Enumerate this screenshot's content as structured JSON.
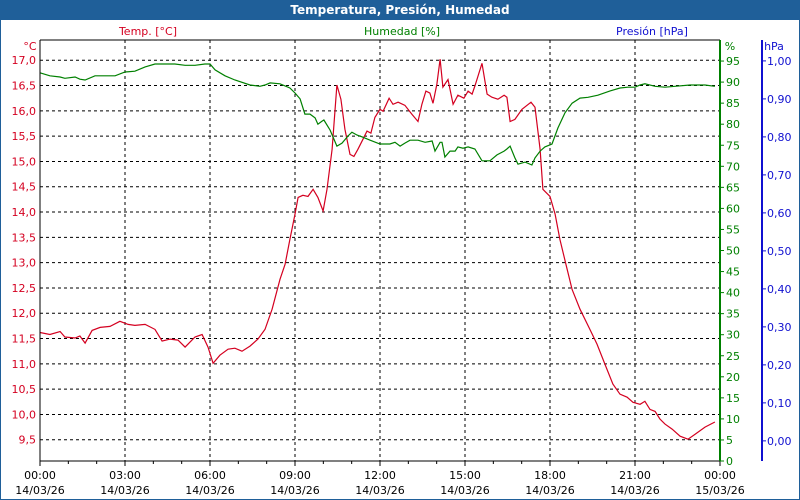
{
  "window_title": "Temperatura, Presión, Humedad",
  "colors": {
    "temp": "#d40020",
    "hum": "#008000",
    "pres": "#1010d0",
    "titlebar": "#1f5f99"
  },
  "chart_data": {
    "type": "line",
    "title": "Temperatura, Presión, Humedad",
    "legend": {
      "temp": "Temp. [°C]",
      "hum": "Humedad [%]",
      "pres": "Presión [hPa]"
    },
    "axes": {
      "temp": {
        "unit": "°C",
        "range": [
          9.08,
          17.4
        ],
        "ticks": [
          "9,5",
          "10,0",
          "10,5",
          "11,0",
          "11,5",
          "12,0",
          "12,5",
          "13,0",
          "13,5",
          "14,0",
          "14,5",
          "15,0",
          "15,5",
          "16,0",
          "16,5",
          "17,0"
        ],
        "tick_values": [
          9.5,
          10,
          10.5,
          11,
          11.5,
          12,
          12.5,
          13,
          13.5,
          14,
          14.5,
          15,
          15.5,
          16,
          16.5,
          17
        ]
      },
      "hum": {
        "unit": "%",
        "range": [
          0,
          100
        ],
        "ticks": [
          "0",
          "5",
          "10",
          "15",
          "20",
          "25",
          "30",
          "35",
          "40",
          "45",
          "50",
          "55",
          "60",
          "65",
          "70",
          "75",
          "80",
          "85",
          "90",
          "95"
        ],
        "tick_values": [
          0,
          5,
          10,
          15,
          20,
          25,
          30,
          35,
          40,
          45,
          50,
          55,
          60,
          65,
          70,
          75,
          80,
          85,
          90,
          95
        ]
      },
      "pres": {
        "unit": "hPa",
        "range": [
          -0.053,
          1.055
        ],
        "ticks": [
          "0,00",
          "0,10",
          "0,20",
          "0,30",
          "0,40",
          "0,50",
          "0,60",
          "0,70",
          "0,80",
          "0,90",
          "1,00"
        ],
        "tick_values": [
          0,
          0.1,
          0.2,
          0.3,
          0.4,
          0.5,
          0.6,
          0.7,
          0.8,
          0.9,
          1.0
        ]
      },
      "x": {
        "range_hours": [
          0,
          24
        ],
        "ticks": [
          {
            "time": "00:00",
            "date": "14/03/26"
          },
          {
            "time": "03:00",
            "date": "14/03/26"
          },
          {
            "time": "06:00",
            "date": "14/03/26"
          },
          {
            "time": "09:00",
            "date": "14/03/26"
          },
          {
            "time": "12:00",
            "date": "14/03/26"
          },
          {
            "time": "15:00",
            "date": "14/03/26"
          },
          {
            "time": "18:00",
            "date": "14/03/26"
          },
          {
            "time": "21:00",
            "date": "14/03/26"
          },
          {
            "time": "00:00",
            "date": "15/03/26"
          }
        ]
      }
    },
    "grid": true,
    "series": [
      {
        "name": "Temp. [°C]",
        "axis": "temp",
        "points": [
          [
            0,
            11.62
          ],
          [
            0.35,
            11.58
          ],
          [
            0.71,
            11.64
          ],
          [
            0.88,
            11.53
          ],
          [
            1.24,
            11.51
          ],
          [
            1.41,
            11.55
          ],
          [
            1.59,
            11.41
          ],
          [
            1.84,
            11.66
          ],
          [
            2.12,
            11.72
          ],
          [
            2.47,
            11.74
          ],
          [
            2.82,
            11.84
          ],
          [
            3.11,
            11.78
          ],
          [
            3.35,
            11.76
          ],
          [
            3.71,
            11.78
          ],
          [
            4.06,
            11.68
          ],
          [
            4.31,
            11.45
          ],
          [
            4.59,
            11.49
          ],
          [
            4.87,
            11.47
          ],
          [
            5.12,
            11.33
          ],
          [
            5.47,
            11.53
          ],
          [
            5.72,
            11.58
          ],
          [
            5.93,
            11.33
          ],
          [
            6.11,
            11.01
          ],
          [
            6.35,
            11.17
          ],
          [
            6.64,
            11.29
          ],
          [
            6.88,
            11.31
          ],
          [
            7.13,
            11.25
          ],
          [
            7.41,
            11.35
          ],
          [
            7.69,
            11.49
          ],
          [
            7.94,
            11.68
          ],
          [
            8.19,
            12.08
          ],
          [
            8.47,
            12.67
          ],
          [
            8.65,
            12.97
          ],
          [
            8.82,
            13.46
          ],
          [
            9.0,
            13.96
          ],
          [
            9.11,
            14.29
          ],
          [
            9.28,
            14.33
          ],
          [
            9.46,
            14.31
          ],
          [
            9.64,
            14.45
          ],
          [
            9.81,
            14.29
          ],
          [
            9.99,
            14.02
          ],
          [
            10.13,
            14.45
          ],
          [
            10.31,
            15.24
          ],
          [
            10.48,
            16.51
          ],
          [
            10.62,
            16.23
          ],
          [
            10.76,
            15.64
          ],
          [
            10.94,
            15.14
          ],
          [
            11.08,
            15.1
          ],
          [
            11.22,
            15.24
          ],
          [
            11.4,
            15.44
          ],
          [
            11.54,
            15.6
          ],
          [
            11.68,
            15.56
          ],
          [
            11.82,
            15.87
          ],
          [
            12.0,
            16.03
          ],
          [
            12.11,
            15.99
          ],
          [
            12.32,
            16.25
          ],
          [
            12.46,
            16.13
          ],
          [
            12.64,
            16.17
          ],
          [
            12.88,
            16.11
          ],
          [
            13.13,
            15.93
          ],
          [
            13.34,
            15.79
          ],
          [
            13.48,
            16.13
          ],
          [
            13.62,
            16.39
          ],
          [
            13.76,
            16.35
          ],
          [
            13.87,
            16.15
          ],
          [
            14.01,
            16.53
          ],
          [
            14.12,
            17.02
          ],
          [
            14.22,
            16.47
          ],
          [
            14.4,
            16.62
          ],
          [
            14.58,
            16.13
          ],
          [
            14.75,
            16.31
          ],
          [
            14.96,
            16.25
          ],
          [
            15.11,
            16.39
          ],
          [
            15.25,
            16.33
          ],
          [
            15.35,
            16.49
          ],
          [
            15.6,
            16.94
          ],
          [
            15.78,
            16.33
          ],
          [
            15.95,
            16.27
          ],
          [
            16.16,
            16.23
          ],
          [
            16.38,
            16.31
          ],
          [
            16.48,
            16.27
          ],
          [
            16.59,
            15.79
          ],
          [
            16.76,
            15.83
          ],
          [
            17.01,
            16.03
          ],
          [
            17.33,
            16.17
          ],
          [
            17.47,
            16.07
          ],
          [
            17.65,
            15.24
          ],
          [
            17.75,
            14.45
          ],
          [
            18.0,
            14.31
          ],
          [
            18.18,
            13.96
          ],
          [
            18.35,
            13.46
          ],
          [
            18.56,
            12.97
          ],
          [
            18.78,
            12.47
          ],
          [
            19.06,
            12.08
          ],
          [
            19.41,
            11.68
          ],
          [
            19.66,
            11.39
          ],
          [
            19.94,
            10.99
          ],
          [
            20.22,
            10.6
          ],
          [
            20.47,
            10.4
          ],
          [
            20.72,
            10.34
          ],
          [
            20.93,
            10.24
          ],
          [
            21.18,
            10.2
          ],
          [
            21.35,
            10.26
          ],
          [
            21.53,
            10.1
          ],
          [
            21.71,
            10.06
          ],
          [
            21.88,
            9.91
          ],
          [
            22.06,
            9.81
          ],
          [
            22.31,
            9.71
          ],
          [
            22.59,
            9.57
          ],
          [
            22.87,
            9.51
          ],
          [
            23.12,
            9.61
          ],
          [
            23.47,
            9.75
          ],
          [
            23.82,
            9.85
          ]
        ]
      },
      {
        "name": "Humedad [%]",
        "axis": "hum",
        "points": [
          [
            0,
            92.2
          ],
          [
            0.35,
            91.5
          ],
          [
            0.71,
            91.2
          ],
          [
            0.88,
            90.9
          ],
          [
            1.24,
            91.2
          ],
          [
            1.41,
            90.7
          ],
          [
            1.59,
            90.5
          ],
          [
            1.94,
            91.5
          ],
          [
            2.65,
            91.5
          ],
          [
            3.0,
            92.4
          ],
          [
            3.35,
            92.6
          ],
          [
            3.71,
            93.6
          ],
          [
            4.06,
            94.3
          ],
          [
            4.41,
            94.3
          ],
          [
            4.76,
            94.3
          ],
          [
            5.12,
            94.0
          ],
          [
            5.47,
            94.0
          ],
          [
            5.82,
            94.3
          ],
          [
            6.0,
            94.3
          ],
          [
            6.18,
            92.9
          ],
          [
            6.53,
            91.5
          ],
          [
            6.88,
            90.5
          ],
          [
            7.41,
            89.3
          ],
          [
            7.76,
            89.0
          ],
          [
            7.94,
            89.3
          ],
          [
            8.12,
            89.8
          ],
          [
            8.47,
            89.6
          ],
          [
            8.82,
            88.6
          ],
          [
            9.0,
            87.4
          ],
          [
            9.18,
            86.0
          ],
          [
            9.35,
            82.4
          ],
          [
            9.53,
            82.4
          ],
          [
            9.71,
            81.5
          ],
          [
            9.81,
            80.0
          ],
          [
            9.95,
            80.7
          ],
          [
            10.02,
            81.0
          ],
          [
            10.24,
            78.6
          ],
          [
            10.48,
            74.8
          ],
          [
            10.66,
            75.5
          ],
          [
            10.87,
            77.2
          ],
          [
            11.01,
            78.1
          ],
          [
            11.19,
            77.4
          ],
          [
            11.36,
            77.0
          ],
          [
            11.65,
            76.2
          ],
          [
            12.0,
            75.3
          ],
          [
            12.35,
            75.3
          ],
          [
            12.53,
            75.7
          ],
          [
            12.71,
            74.8
          ],
          [
            12.88,
            75.5
          ],
          [
            13.06,
            76.2
          ],
          [
            13.34,
            76.2
          ],
          [
            13.59,
            75.7
          ],
          [
            13.84,
            76.0
          ],
          [
            13.94,
            73.6
          ],
          [
            14.12,
            75.7
          ],
          [
            14.19,
            75.7
          ],
          [
            14.29,
            72.2
          ],
          [
            14.47,
            73.6
          ],
          [
            14.65,
            73.6
          ],
          [
            14.75,
            74.6
          ],
          [
            14.93,
            74.3
          ],
          [
            15.11,
            74.6
          ],
          [
            15.35,
            74.1
          ],
          [
            15.6,
            71.3
          ],
          [
            15.88,
            71.3
          ],
          [
            16.13,
            72.7
          ],
          [
            16.38,
            73.6
          ],
          [
            16.48,
            74.1
          ],
          [
            16.59,
            74.8
          ],
          [
            16.76,
            72.0
          ],
          [
            16.87,
            70.5
          ],
          [
            17.12,
            71.0
          ],
          [
            17.36,
            70.3
          ],
          [
            17.47,
            72.0
          ],
          [
            17.65,
            73.6
          ],
          [
            17.82,
            74.6
          ],
          [
            18.07,
            75.3
          ],
          [
            18.28,
            79.1
          ],
          [
            18.53,
            82.7
          ],
          [
            18.78,
            85.0
          ],
          [
            19.06,
            86.2
          ],
          [
            19.34,
            86.4
          ],
          [
            19.69,
            86.9
          ],
          [
            20.12,
            87.9
          ],
          [
            20.47,
            88.6
          ],
          [
            20.75,
            88.8
          ],
          [
            21.0,
            88.8
          ],
          [
            21.18,
            89.3
          ],
          [
            21.35,
            89.6
          ],
          [
            21.71,
            89.0
          ],
          [
            22.06,
            88.8
          ],
          [
            22.41,
            89.0
          ],
          [
            22.94,
            89.3
          ],
          [
            23.47,
            89.3
          ],
          [
            23.82,
            89.0
          ]
        ]
      }
    ]
  }
}
